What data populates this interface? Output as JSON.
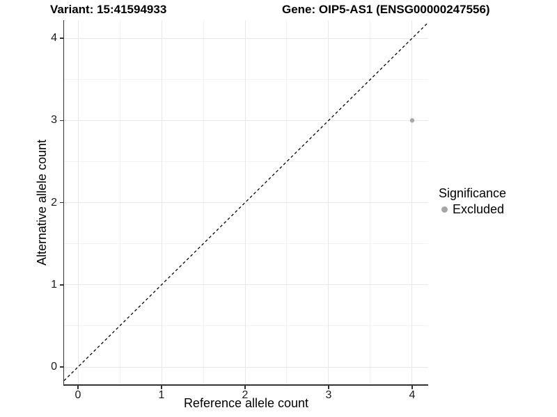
{
  "titles": {
    "variant": "Variant: 15:41594933",
    "gene": "Gene: OIP5-AS1 (ENSG00000247556)"
  },
  "chart_data": {
    "type": "scatter",
    "title_left": "Variant: 15:41594933",
    "title_right": "Gene: OIP5-AS1 (ENSG00000247556)",
    "xlabel": "Reference allele count",
    "ylabel": "Alternative allele count",
    "xlim": [
      -0.1667,
      4.1917
    ],
    "ylim": [
      -0.2114,
      4.2199
    ],
    "x_ticks": [
      0,
      1,
      2,
      3,
      4
    ],
    "y_ticks": [
      0,
      1,
      2,
      3,
      4
    ],
    "x_minor_ticks": [
      0.5,
      1.5,
      2.5,
      3.5
    ],
    "y_minor_ticks": [
      0.5,
      1.5,
      2.5,
      3.5
    ],
    "grid": "major and minor, light grey on white",
    "points": [
      {
        "x": 4,
        "y": 3,
        "series": "Excluded"
      }
    ],
    "series": [
      {
        "name": "Excluded",
        "color": "#a6a6a6"
      }
    ],
    "reference_line": {
      "equation": "y = x",
      "style": "dashed",
      "color": "#000000"
    },
    "legend": {
      "title": "Significance",
      "position": "right",
      "items": [
        {
          "label": "Excluded",
          "color": "#a6a6a6"
        }
      ]
    }
  },
  "colors": {
    "background": "#ffffff",
    "axis_line": "#333333",
    "grid_major": "#e8e8e8",
    "grid_minor": "#f3f3f3",
    "point_excluded": "#a6a6a6",
    "dashed_line": "#000000",
    "text": "#000000"
  }
}
